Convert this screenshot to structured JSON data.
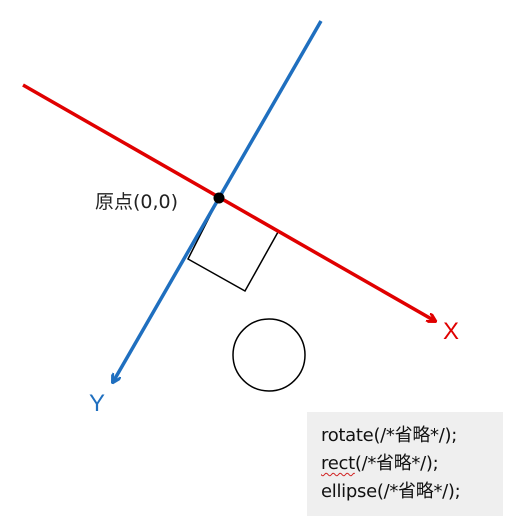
{
  "diagram": {
    "origin_label": "原点(0,0)",
    "x_axis_label": "X",
    "y_axis_label": "Y",
    "colors": {
      "x_axis": "#e00000",
      "y_axis": "#1f6fbf",
      "shapes": "#000000",
      "code_background": "#efefef"
    }
  },
  "code": {
    "rotate_name": "rotate",
    "rotate_args": "(/*省略*/);",
    "rect_name": "rect",
    "rect_args": "(/*省略*/);",
    "ellipse_name": "ellipse",
    "ellipse_args": "(/*省略*/);"
  }
}
